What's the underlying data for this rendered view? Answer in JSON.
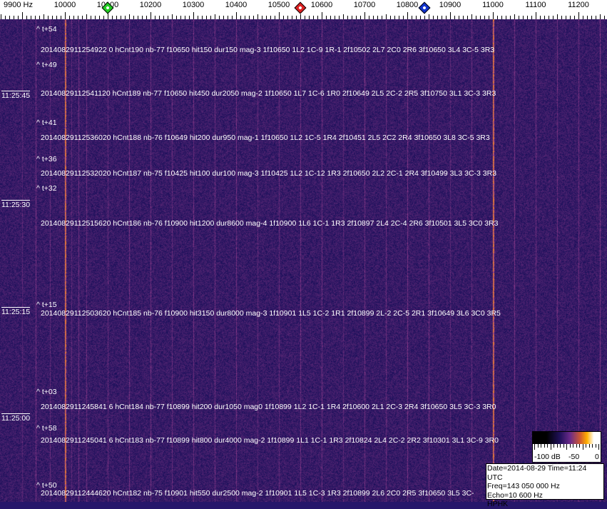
{
  "axis": {
    "unit_label": "9900 Hz",
    "ticks": [
      "10000",
      "10100",
      "10200",
      "10300",
      "10400",
      "10500",
      "10600",
      "10700",
      "10800",
      "10900",
      "11000",
      "11100",
      "11200"
    ],
    "markers": [
      {
        "name": "green",
        "freq_hz": 10100,
        "color": "#22cc22"
      },
      {
        "name": "red",
        "freq_hz": 10550,
        "color": "#dd2222"
      },
      {
        "name": "blue",
        "freq_hz": 10840,
        "color": "#1133cc"
      }
    ]
  },
  "spectrogram": {
    "carrier_lines_hz": [
      10000,
      11000
    ],
    "background_color": "#26166a",
    "time_labels": [
      "11:25:45",
      "11:25:30",
      "11:25:15",
      "11:25:00"
    ],
    "offsets": [
      "^ t+54",
      "^ t+49",
      "^ t+41",
      "^ t+36",
      "^ t+32",
      "^ t+15",
      "^ t+03",
      "^ t+58",
      "^ t+50"
    ],
    "detections": [
      "2014082911254922 0 hCnt190 nb-77 f10650 hit150 dur150 mag-3 1f10650 1L2 1C-9 1R-1 2f10502 2L7 2C0 2R6 3f10650 3L4 3C-5 3R3",
      "20140829112541120 hCnt189 nb-77 f10650 hit450 dur2050 mag-2 1f10650 1L7 1C-6 1R0 2f10649 2L5 2C-2 2R5 3f10750 3L1 3C-3 3R3",
      "20140829112536020 hCnt188 nb-76 f10649 hit200 dur950 mag-1 1f10650 1L2 1C-5 1R4 2f10451 2L5 2C2 2R4 3f10650 3L8 3C-5 3R3",
      "20140829112532020 hCnt187 nb-75 f10425 hit100 dur100 mag-3 1f10425 1L2 1C-12 1R3 2f10650 2L2 2C-1 2R4 3f10499 3L3 3C-3 3R3",
      "20140829112515620 hCnt186 nb-76 f10900 hit1200 dur8600 mag-4 1f10900 1L6 1C-1 1R3 2f10897 2L4 2C-4 2R6 3f10501 3L5 3C0 3R3",
      "20140829112503620 hCnt185 nb-76 f10900 hit3150 dur8000 mag-3 1f10901 1L5 1C-2 1R1 2f10899 2L-2 2C-5 2R1 3f10649 3L6 3C0 3R5",
      "2014082911245841 6 hCnt184 nb-77 f10899 hit200 dur1050 mag0 1f10899 1L2 1C-1 1R4 2f10600 2L1 2C-3 2R4 3f10650 3L5 3C-3 3R0",
      "2014082911245041 6 hCnt183 nb-77 f10899 hit800 dur4000 mag-2 1f10899 1L1 1C-1 1R3 2f10824 2L4 2C-2 2R2 3f10301 3L1 3C-9 3R0",
      "20140829112444620 hCnt182 nb-75 f10901 hit550 dur2500 mag-2 1f10901 1L5 1C-3 1R3 2f10899 2L6 2C0 2R5 3f10650 3L5 3C-"
    ]
  },
  "colorbar": {
    "labels": [
      "-100 dB",
      "-50",
      "0"
    ]
  },
  "info": {
    "date_time": "Date=2014-08-29 Time=11:24 UTC",
    "freq": "Freq=143 050 000 Hz",
    "echo": "Echo=10 600 Hz",
    "station": "HPHK"
  }
}
